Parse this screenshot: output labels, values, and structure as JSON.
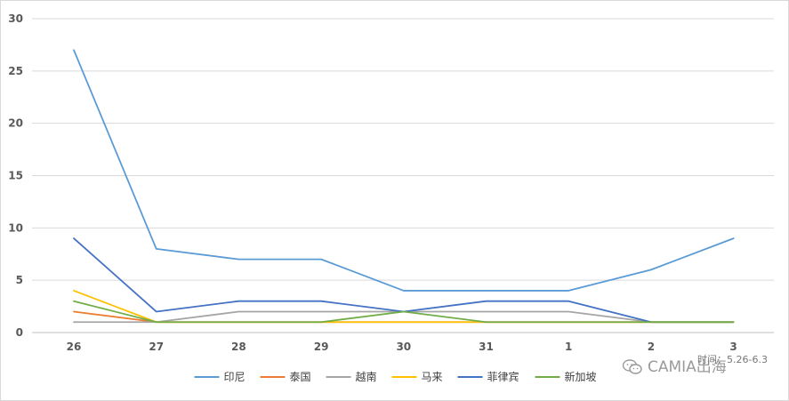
{
  "chart_data": {
    "type": "line",
    "title": "",
    "xlabel": "",
    "ylabel": "",
    "categories": [
      "26",
      "27",
      "28",
      "29",
      "30",
      "31",
      "1",
      "2",
      "3"
    ],
    "ylim": [
      0,
      30
    ],
    "yticks": [
      0,
      5,
      10,
      15,
      20,
      25,
      30
    ],
    "grid": true,
    "legend_position": "bottom",
    "series": [
      {
        "name": "印尼",
        "color": "#5B9BD5",
        "values": [
          27,
          8,
          7,
          7,
          4,
          4,
          4,
          6,
          9
        ]
      },
      {
        "name": "泰国",
        "color": "#ED7D31",
        "values": [
          2,
          1,
          1,
          1,
          1,
          1,
          1,
          1,
          1
        ]
      },
      {
        "name": "越南",
        "color": "#A5A5A5",
        "values": [
          1,
          1,
          2,
          2,
          2,
          2,
          2,
          1,
          1
        ]
      },
      {
        "name": "马来",
        "color": "#FFC000",
        "values": [
          4,
          1,
          1,
          1,
          1,
          1,
          1,
          1,
          1
        ]
      },
      {
        "name": "菲律宾",
        "color": "#4472C4",
        "values": [
          9,
          2,
          3,
          3,
          2,
          3,
          3,
          1,
          1
        ]
      },
      {
        "name": "新加坡",
        "color": "#70AD47",
        "values": [
          3,
          1,
          1,
          1,
          2,
          1,
          1,
          1,
          1
        ]
      }
    ]
  },
  "watermark": {
    "text": "CAMIA出海",
    "subtext": "时间：5.26-6.3",
    "icon": "wechat-icon"
  }
}
